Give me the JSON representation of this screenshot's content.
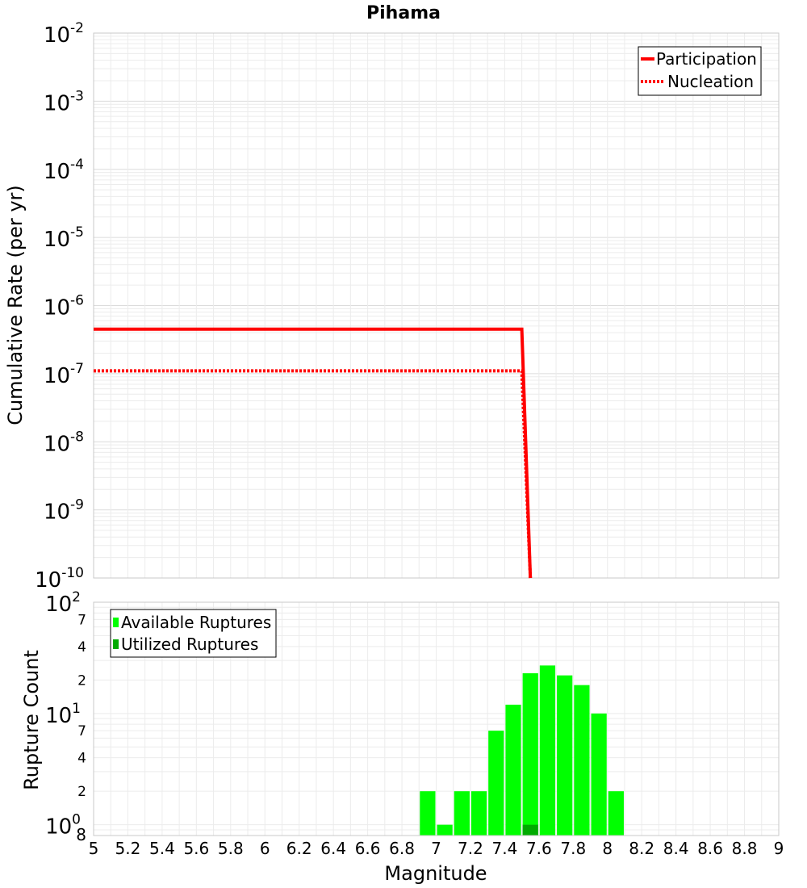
{
  "title": "Pihama",
  "chart_data": [
    {
      "type": "line",
      "ylabel": "Cumulative Rate (per yr)",
      "yscale": "log",
      "ylim": [
        1e-10,
        0.01
      ],
      "xlim": [
        5,
        9
      ],
      "y_ticks": [
        {
          "base": "10",
          "exp": "-2"
        },
        {
          "base": "10",
          "exp": "-3"
        },
        {
          "base": "10",
          "exp": "-4"
        },
        {
          "base": "10",
          "exp": "-5"
        },
        {
          "base": "10",
          "exp": "-6"
        },
        {
          "base": "10",
          "exp": "-7"
        },
        {
          "base": "10",
          "exp": "-8"
        },
        {
          "base": "10",
          "exp": "-9"
        },
        {
          "base": "10",
          "exp": "-10"
        }
      ],
      "grid": true,
      "legend_position": "top-right",
      "series": [
        {
          "name": "Participation",
          "style": "solid",
          "color": "#ff0000",
          "x": [
            5.0,
            7.5,
            7.55
          ],
          "y": [
            4.5e-07,
            4.5e-07,
            1e-10
          ]
        },
        {
          "name": "Nucleation",
          "style": "dotted",
          "color": "#ff0000",
          "x": [
            5.0,
            7.5,
            7.55
          ],
          "y": [
            1.1e-07,
            1.1e-07,
            1e-10
          ]
        }
      ]
    },
    {
      "type": "bar",
      "xlabel": "Magnitude",
      "ylabel": "Rupture Count",
      "yscale": "log",
      "ylim": [
        0.8,
        100
      ],
      "xlim": [
        5,
        9
      ],
      "x_tick_labels": [
        "5",
        "5.2",
        "5.4",
        "5.6",
        "5.8",
        "6",
        "6.2",
        "6.4",
        "6.6",
        "6.8",
        "7",
        "7.2",
        "7.4",
        "7.6",
        "7.8",
        "8",
        "8.2",
        "8.4",
        "8.6",
        "8.8",
        "9"
      ],
      "y_major_ticks": [
        {
          "base": "10",
          "exp": "2"
        },
        {
          "base": "10",
          "exp": "1"
        },
        {
          "base": "10",
          "exp": "0"
        }
      ],
      "y_minor_tick_labels": [
        "7",
        "4",
        "2",
        "7",
        "4",
        "2",
        "8"
      ],
      "grid": true,
      "legend_position": "top-left",
      "series": [
        {
          "name": "Available Ruptures",
          "color": "#00ff00",
          "x": [
            6.95,
            7.05,
            7.15,
            7.25,
            7.35,
            7.45,
            7.55,
            7.65,
            7.75,
            7.85,
            7.95,
            8.05
          ],
          "values": [
            2,
            1,
            2,
            2,
            7,
            12,
            23,
            27,
            22,
            18,
            10,
            2
          ]
        },
        {
          "name": "Utilized Ruptures",
          "color": "#00aa00",
          "x": [
            7.55
          ],
          "values": [
            1
          ]
        }
      ]
    }
  ]
}
